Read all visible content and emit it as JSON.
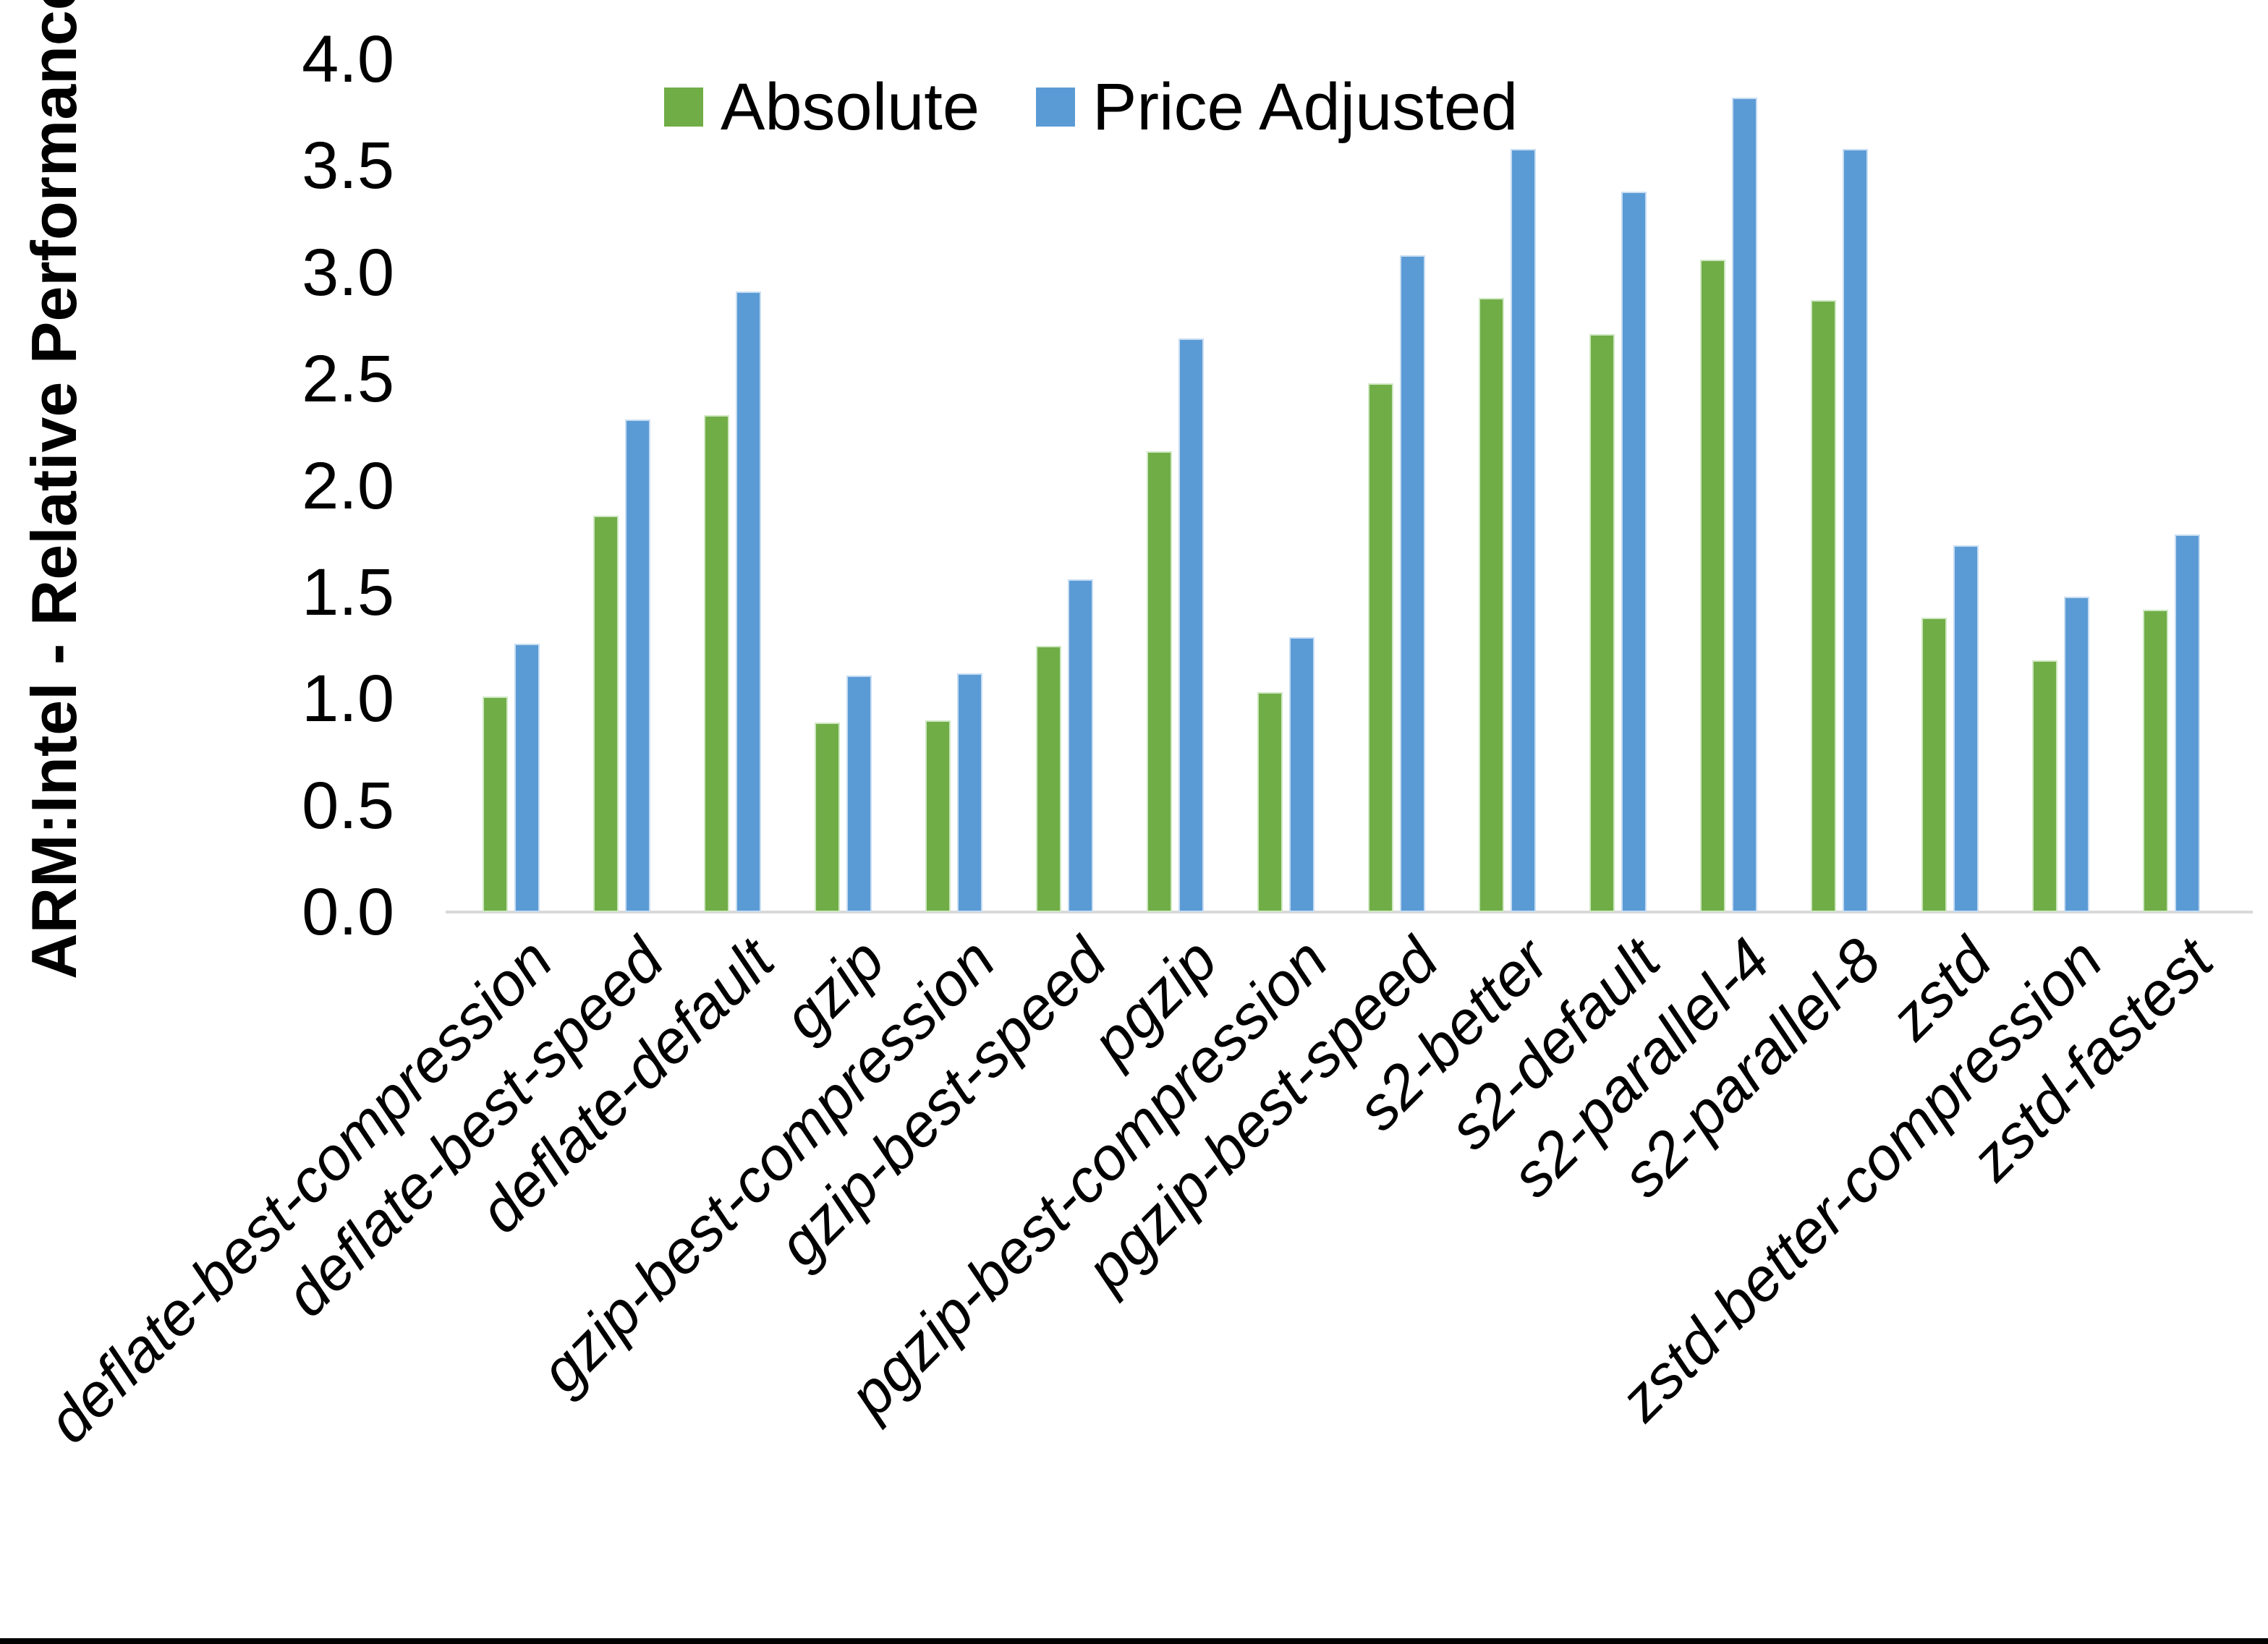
{
  "chart_data": {
    "type": "bar",
    "title": "",
    "xlabel": "",
    "ylabel": "ARM:Intel - Relative Performance",
    "ylim": [
      0.0,
      4.0
    ],
    "ytick_step": 0.5,
    "ytick_labels": [
      "0.0",
      "0.5",
      "1.0",
      "1.5",
      "2.0",
      "2.5",
      "3.0",
      "3.5",
      "4.0"
    ],
    "grid": false,
    "legend_position": "top-center",
    "axis_line_color": "#d9d9d9",
    "categories": [
      "deflate-best-compression",
      "deflate-best-speed",
      "deflate-default",
      "gzip",
      "gzip-best-compression",
      "gzip-best-speed",
      "pgzip",
      "pgzip-best-compression",
      "pgzip-best-speed",
      "s2-better",
      "s2-default",
      "s2-parallel-4",
      "s2-parallel-8",
      "zstd",
      "zstd-better-compression",
      "zstd-fastest"
    ],
    "series": [
      {
        "name": "Absolute",
        "color": "#70AD47",
        "edge_color": "#cfe8c2",
        "values": [
          1.01,
          1.86,
          2.33,
          0.89,
          0.9,
          1.25,
          2.16,
          1.03,
          2.48,
          2.88,
          2.71,
          3.06,
          2.87,
          1.38,
          1.18,
          1.42
        ]
      },
      {
        "name": "Price Adjusted",
        "color": "#5B9BD5",
        "edge_color": "#c7ddf2",
        "values": [
          1.26,
          2.31,
          2.91,
          1.11,
          1.12,
          1.56,
          2.69,
          1.29,
          3.08,
          3.58,
          3.38,
          3.82,
          3.58,
          1.72,
          1.48,
          1.77
        ]
      }
    ]
  }
}
